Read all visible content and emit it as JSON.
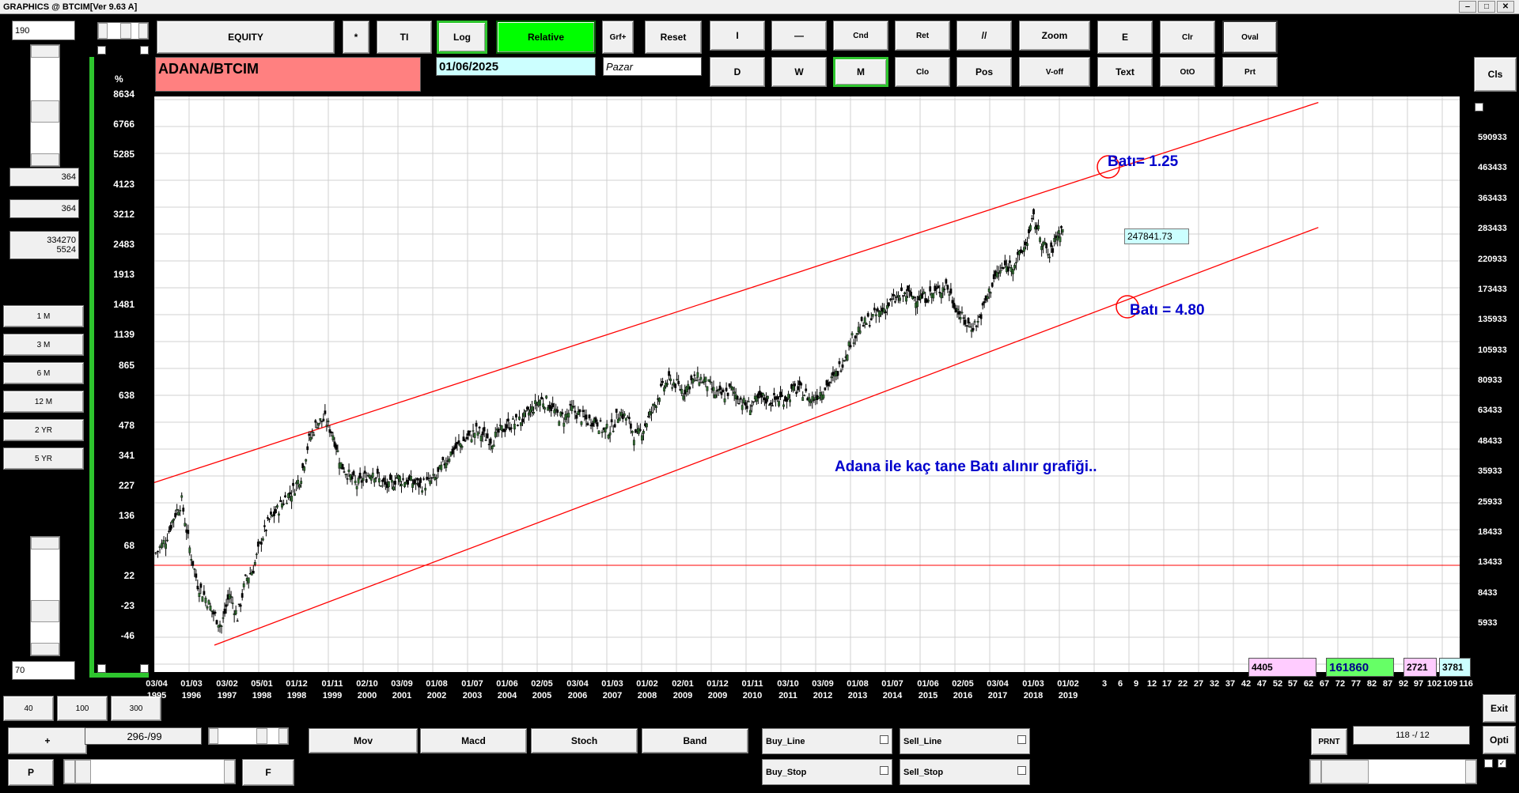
{
  "window": {
    "title": "GRAPHICS  @ BTCIM[Ver 9.63 A]"
  },
  "top_buttons": {
    "equity": "EQUITY",
    "star": "*",
    "ti": "TI",
    "log": "Log",
    "relative": "Relative",
    "grf": "Grf+",
    "reset": "Reset",
    "i": "I",
    "dash": "—",
    "cnd": "Cnd",
    "ret": "Ret",
    "slashes": "//",
    "zoom": "Zoom",
    "e": "E",
    "clr": "Clr",
    "oval": "Oval",
    "d": "D",
    "w": "W",
    "m": "M",
    "clo": "Clo",
    "pos": "Pos",
    "voff": "V-off",
    "text": "Text",
    "oto": "OtO",
    "prt": "Prt",
    "cls": "Cls"
  },
  "symbol": "ADANA/BTCIM",
  "date": "01/06/2025",
  "day": "Pazar",
  "left_panel": {
    "field1": "190",
    "v1": "364",
    "v2": "364",
    "v3a": "334270",
    "v3b": "5524",
    "periods": [
      "1 M",
      "3 M",
      "6 M",
      "12 M",
      "2 YR",
      "5 YR"
    ],
    "field2": "70"
  },
  "pct_label": "%",
  "left_axis": [
    "8634",
    "6766",
    "5285",
    "4123",
    "3212",
    "2483",
    "1913",
    "1481",
    "1139",
    "865",
    "638",
    "478",
    "341",
    "227",
    "136",
    "68",
    "22",
    "-23",
    "-46"
  ],
  "right_axis": [
    "590933",
    "463433",
    "363433",
    "283433",
    "220933",
    "173433",
    "135933",
    "105933",
    "80933",
    "63433",
    "48433",
    "35933",
    "25933",
    "18433",
    "13433",
    "8433",
    "5933"
  ],
  "x_labels": [
    [
      "03/04",
      "1995"
    ],
    [
      "01/03",
      "1996"
    ],
    [
      "03/02",
      "1997"
    ],
    [
      "05/01",
      "1998"
    ],
    [
      "01/12",
      "1998"
    ],
    [
      "01/11",
      "1999"
    ],
    [
      "02/10",
      "2000"
    ],
    [
      "03/09",
      "2001"
    ],
    [
      "01/08",
      "2002"
    ],
    [
      "01/07",
      "2003"
    ],
    [
      "01/06",
      "2004"
    ],
    [
      "02/05",
      "2005"
    ],
    [
      "03/04",
      "2006"
    ],
    [
      "01/03",
      "2007"
    ],
    [
      "01/02",
      "2008"
    ],
    [
      "02/01",
      "2009"
    ],
    [
      "01/12",
      "2009"
    ],
    [
      "01/11",
      "2010"
    ],
    [
      "03/10",
      "2011"
    ],
    [
      "03/09",
      "2012"
    ],
    [
      "01/08",
      "2013"
    ],
    [
      "01/07",
      "2014"
    ],
    [
      "01/06",
      "2015"
    ],
    [
      "02/05",
      "2016"
    ],
    [
      "03/04",
      "2017"
    ],
    [
      "01/03",
      "2018"
    ],
    [
      "01/02",
      "2019"
    ]
  ],
  "x_future": [
    "3",
    "6",
    "9",
    "12",
    "17",
    "22",
    "27",
    "32",
    "37",
    "42",
    "47",
    "52",
    "57",
    "62",
    "67",
    "72",
    "77",
    "82",
    "87",
    "92",
    "97",
    "102",
    "109",
    "116"
  ],
  "chart_data": {
    "type": "candlestick",
    "scale": "log",
    "x_range": [
      "03/04/1995",
      "2019"
    ],
    "ylim_right": [
      5933,
      590933
    ],
    "last_value": "247841.73",
    "annotations": {
      "upper": "Batı= 1.25",
      "lower": "Batı = 4.80",
      "caption": "Adana ile kaç tane Batı alınır grafiği.."
    },
    "channel": {
      "upper": [
        [
          0,
          20800
        ],
        [
          1,
          788000
        ]
      ],
      "lower": [
        [
          0.06,
          4600
        ],
        [
          1,
          241000
        ]
      ]
    },
    "horizontal_line": 9800,
    "series": [
      {
        "t": 0.0,
        "v": 11000
      },
      {
        "t": 0.01,
        "v": 12500
      },
      {
        "t": 0.018,
        "v": 15500
      },
      {
        "t": 0.026,
        "v": 18000
      },
      {
        "t": 0.034,
        "v": 11500
      },
      {
        "t": 0.042,
        "v": 8200
      },
      {
        "t": 0.05,
        "v": 7200
      },
      {
        "t": 0.058,
        "v": 6200
      },
      {
        "t": 0.066,
        "v": 5500
      },
      {
        "t": 0.074,
        "v": 7500
      },
      {
        "t": 0.082,
        "v": 6000
      },
      {
        "t": 0.09,
        "v": 8500
      },
      {
        "t": 0.098,
        "v": 9500
      },
      {
        "t": 0.106,
        "v": 12500
      },
      {
        "t": 0.114,
        "v": 15000
      },
      {
        "t": 0.122,
        "v": 16500
      },
      {
        "t": 0.13,
        "v": 18500
      },
      {
        "t": 0.138,
        "v": 20000
      },
      {
        "t": 0.146,
        "v": 23000
      },
      {
        "t": 0.154,
        "v": 32000
      },
      {
        "t": 0.162,
        "v": 38000
      },
      {
        "t": 0.17,
        "v": 39000
      },
      {
        "t": 0.178,
        "v": 34000
      },
      {
        "t": 0.186,
        "v": 25500
      },
      {
        "t": 0.194,
        "v": 23000
      },
      {
        "t": 0.202,
        "v": 21000
      },
      {
        "t": 0.21,
        "v": 22500
      },
      {
        "t": 0.218,
        "v": 24000
      },
      {
        "t": 0.226,
        "v": 21500
      },
      {
        "t": 0.234,
        "v": 20500
      },
      {
        "t": 0.242,
        "v": 22500
      },
      {
        "t": 0.25,
        "v": 22000
      },
      {
        "t": 0.258,
        "v": 21500
      },
      {
        "t": 0.266,
        "v": 21000
      },
      {
        "t": 0.274,
        "v": 21500
      },
      {
        "t": 0.282,
        "v": 22500
      },
      {
        "t": 0.29,
        "v": 26000
      },
      {
        "t": 0.298,
        "v": 29000
      },
      {
        "t": 0.306,
        "v": 31000
      },
      {
        "t": 0.314,
        "v": 33000
      },
      {
        "t": 0.322,
        "v": 35000
      },
      {
        "t": 0.33,
        "v": 33500
      },
      {
        "t": 0.338,
        "v": 32000
      },
      {
        "t": 0.346,
        "v": 35000
      },
      {
        "t": 0.354,
        "v": 37000
      },
      {
        "t": 0.362,
        "v": 38000
      },
      {
        "t": 0.37,
        "v": 39500
      },
      {
        "t": 0.378,
        "v": 43000
      },
      {
        "t": 0.386,
        "v": 47000
      },
      {
        "t": 0.394,
        "v": 46000
      },
      {
        "t": 0.402,
        "v": 41000
      },
      {
        "t": 0.41,
        "v": 39500
      },
      {
        "t": 0.418,
        "v": 43000
      },
      {
        "t": 0.426,
        "v": 40500
      },
      {
        "t": 0.434,
        "v": 38500
      },
      {
        "t": 0.442,
        "v": 39000
      },
      {
        "t": 0.45,
        "v": 35000
      },
      {
        "t": 0.458,
        "v": 36000
      },
      {
        "t": 0.466,
        "v": 42000
      },
      {
        "t": 0.474,
        "v": 39000
      },
      {
        "t": 0.482,
        "v": 33000
      },
      {
        "t": 0.49,
        "v": 36000
      },
      {
        "t": 0.498,
        "v": 42000
      },
      {
        "t": 0.506,
        "v": 50000
      },
      {
        "t": 0.514,
        "v": 56000
      },
      {
        "t": 0.522,
        "v": 55000
      },
      {
        "t": 0.53,
        "v": 51000
      },
      {
        "t": 0.538,
        "v": 56000
      },
      {
        "t": 0.546,
        "v": 58000
      },
      {
        "t": 0.554,
        "v": 55000
      },
      {
        "t": 0.562,
        "v": 50000
      },
      {
        "t": 0.57,
        "v": 49000
      },
      {
        "t": 0.578,
        "v": 52000
      },
      {
        "t": 0.586,
        "v": 48000
      },
      {
        "t": 0.594,
        "v": 44000
      },
      {
        "t": 0.602,
        "v": 46000
      },
      {
        "t": 0.61,
        "v": 48000
      },
      {
        "t": 0.618,
        "v": 46500
      },
      {
        "t": 0.626,
        "v": 47500
      },
      {
        "t": 0.634,
        "v": 48000
      },
      {
        "t": 0.642,
        "v": 52000
      },
      {
        "t": 0.65,
        "v": 51000
      },
      {
        "t": 0.658,
        "v": 47000
      },
      {
        "t": 0.666,
        "v": 50000
      },
      {
        "t": 0.674,
        "v": 54000
      },
      {
        "t": 0.682,
        "v": 58000
      },
      {
        "t": 0.69,
        "v": 68000
      },
      {
        "t": 0.698,
        "v": 82000
      },
      {
        "t": 0.706,
        "v": 92000
      },
      {
        "t": 0.714,
        "v": 98000
      },
      {
        "t": 0.722,
        "v": 104000
      },
      {
        "t": 0.73,
        "v": 110000
      },
      {
        "t": 0.738,
        "v": 118000
      },
      {
        "t": 0.746,
        "v": 124000
      },
      {
        "t": 0.754,
        "v": 128000
      },
      {
        "t": 0.762,
        "v": 125000
      },
      {
        "t": 0.77,
        "v": 124000
      },
      {
        "t": 0.778,
        "v": 127000
      },
      {
        "t": 0.786,
        "v": 132000
      },
      {
        "t": 0.794,
        "v": 140000
      },
      {
        "t": 0.802,
        "v": 118000
      },
      {
        "t": 0.81,
        "v": 102000
      },
      {
        "t": 0.818,
        "v": 94000
      },
      {
        "t": 0.826,
        "v": 98000
      },
      {
        "t": 0.834,
        "v": 120000
      },
      {
        "t": 0.842,
        "v": 148000
      },
      {
        "t": 0.85,
        "v": 162000
      },
      {
        "t": 0.858,
        "v": 168000
      },
      {
        "t": 0.866,
        "v": 178000
      },
      {
        "t": 0.874,
        "v": 205000
      },
      {
        "t": 0.882,
        "v": 262000
      },
      {
        "t": 0.89,
        "v": 214000
      },
      {
        "t": 0.898,
        "v": 182000
      },
      {
        "t": 0.906,
        "v": 228000
      }
    ]
  },
  "bottom": {
    "b40": "40",
    "b100": "100",
    "b300": "300",
    "plus": "+",
    "range": "296-/99",
    "p": "P",
    "f": "F",
    "mov": "Mov",
    "macd": "Macd",
    "stoch": "Stoch",
    "band": "Band",
    "buy_line": "Buy_Line",
    "buy_stop": "Buy_Stop",
    "sell_line": "Sell_Line",
    "sell_stop": "Sell_Stop",
    "prnt": "PRNT",
    "ratio": "118 -/ 12",
    "exit": "Exit",
    "opti": "Opti",
    "v4405": "4405",
    "v161860": "161860",
    "v2721": "2721",
    "v3781": "3781"
  },
  "colors": {
    "channel": "#ff0000",
    "annotation": "#0000cc",
    "bar_up": "#2e6b2e",
    "bar_down": "#000000",
    "symbol_bg": "#ff8080",
    "date_bg": "#ccffff",
    "green_btn": "#00ff00"
  }
}
